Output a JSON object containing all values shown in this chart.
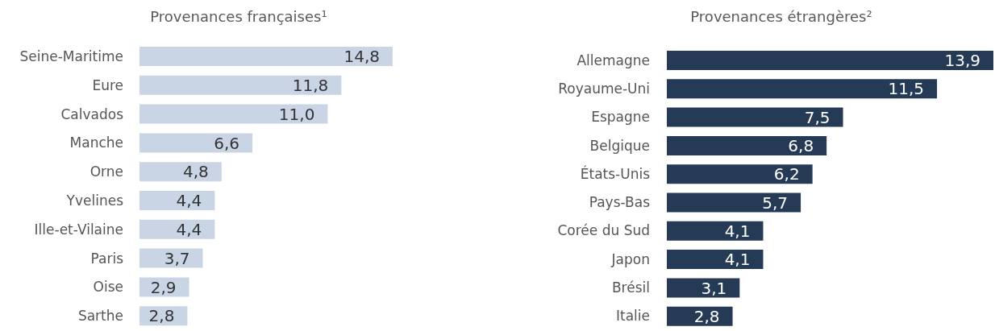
{
  "chart_data": [
    {
      "type": "bar",
      "orientation": "horizontal",
      "title": "Provenances françaises¹",
      "categories": [
        "Seine-Maritime",
        "Eure",
        "Calvados",
        "Manche",
        "Orne",
        "Yvelines",
        "Ille-et-Vilaine",
        "Paris",
        "Oise",
        "Sarthe"
      ],
      "values": [
        14.8,
        11.8,
        11.0,
        6.6,
        4.8,
        4.4,
        4.4,
        3.7,
        2.9,
        2.8
      ],
      "value_labels": [
        "14,8",
        "11,8",
        "11,0",
        "6,6",
        "4,8",
        "4,4",
        "4,4",
        "3,7",
        "2,9",
        "2,8"
      ],
      "color": "#c9d5e5"
    },
    {
      "type": "bar",
      "orientation": "horizontal",
      "title": "Provenances étrangères²",
      "categories": [
        "Allemagne",
        "Royaume-Uni",
        "Espagne",
        "Belgique",
        "États-Unis",
        "Pays-Bas",
        "Corée du Sud",
        "Japon",
        "Brésil",
        "Italie"
      ],
      "values": [
        13.9,
        11.5,
        7.5,
        6.8,
        6.2,
        5.7,
        4.1,
        4.1,
        3.1,
        2.8
      ],
      "value_labels": [
        "13,9",
        "11,5",
        "7,5",
        "6,8",
        "6,2",
        "5,7",
        "4,1",
        "4,1",
        "3,1",
        "2,8"
      ],
      "color": "#253a55"
    }
  ]
}
